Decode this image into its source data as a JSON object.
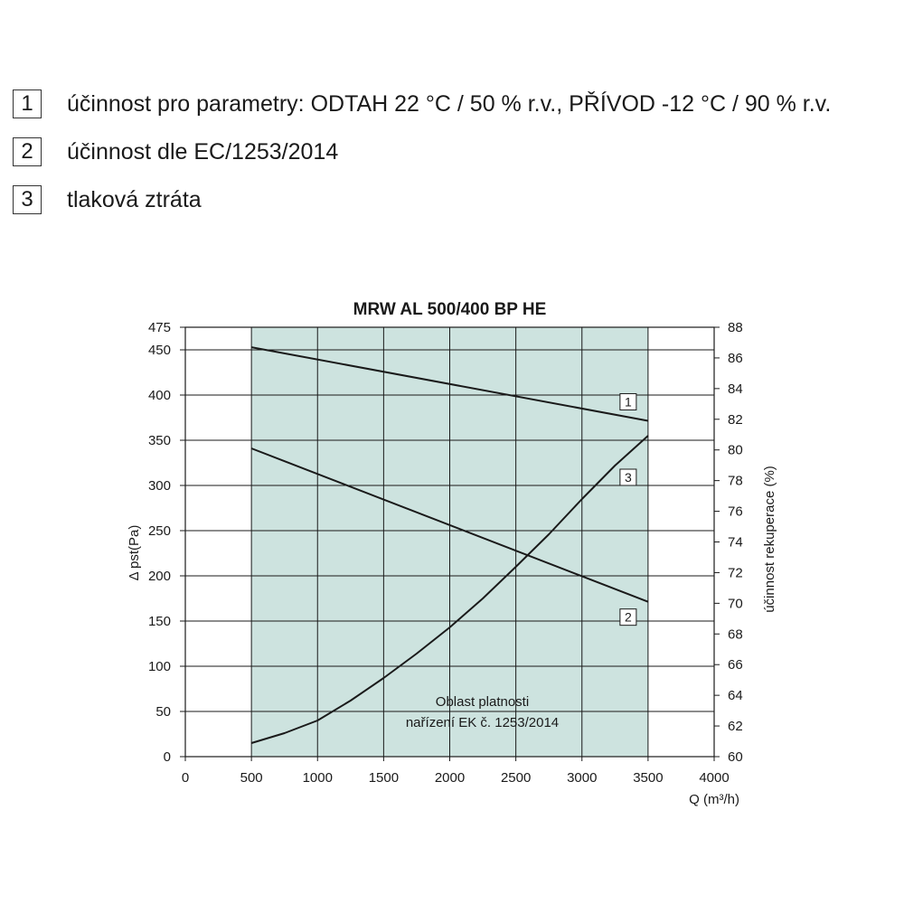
{
  "legend": [
    {
      "num": "1",
      "text": "účinnost pro parametry: ODTAH 22 °C / 50 % r.v., PŘÍVOD -12 °C / 90 % r.v."
    },
    {
      "num": "2",
      "text": "účinnost dle EC/1253/2014"
    },
    {
      "num": "3",
      "text": "tlaková ztráta"
    }
  ],
  "colors": {
    "region_fill": "#cde3df",
    "line": "#1a1a1a",
    "grid": "#1a1a1a"
  },
  "chart_data": {
    "type": "line",
    "title": "MRW AL 500/400 BP HE",
    "xlabel": "Q (m³/h)",
    "ylabel_left": "Δ pst(Pa)",
    "ylabel_right": "účinnost rekuperace (%)",
    "xlim": [
      0,
      4000
    ],
    "ylim_left": [
      0,
      475
    ],
    "ylim_right": [
      60,
      88
    ],
    "x_ticks": [
      0,
      500,
      1000,
      1500,
      2000,
      2500,
      3000,
      3500,
      4000
    ],
    "y_left_ticks": [
      0,
      50,
      100,
      150,
      200,
      250,
      300,
      350,
      400,
      450,
      475
    ],
    "y_right_ticks": [
      60,
      62,
      64,
      66,
      68,
      70,
      72,
      74,
      76,
      78,
      80,
      82,
      84,
      86,
      88
    ],
    "grid": true,
    "region": {
      "label_line1": "Oblast platnosti",
      "label_line2": "nařízení EK č. 1253/2014",
      "x_range": [
        500,
        3500
      ]
    },
    "series": [
      {
        "label": "1",
        "axis": "right",
        "x": [
          500,
          3500
        ],
        "y": [
          86.7,
          81.9
        ]
      },
      {
        "label": "2",
        "axis": "right",
        "x": [
          500,
          3500
        ],
        "y": [
          80.1,
          70.1
        ]
      },
      {
        "label": "3",
        "axis": "left",
        "x": [
          500,
          750,
          1000,
          1250,
          1500,
          1750,
          2000,
          2250,
          2500,
          2750,
          3000,
          3250,
          3500
        ],
        "y": [
          15,
          26,
          40,
          62,
          87,
          114,
          143,
          175,
          210,
          246,
          285,
          322,
          355
        ]
      }
    ]
  }
}
